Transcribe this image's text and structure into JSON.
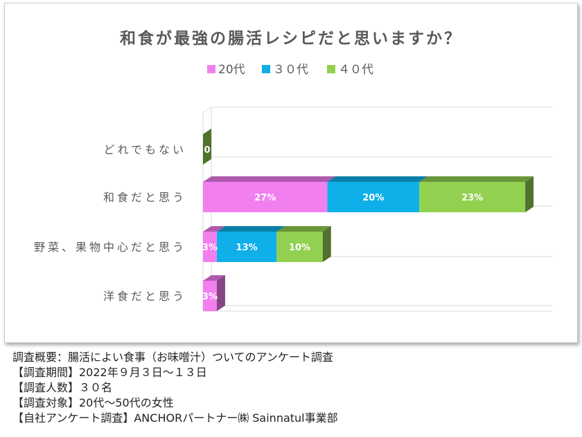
{
  "chart_data": {
    "type": "bar",
    "orientation": "horizontal",
    "stacked": true,
    "title": "和食が最強の腸活レシピだと思いますか？",
    "categories": [
      "どれでもない",
      "和食だと思う",
      "野菜、果物中心だと思う",
      "洋食だと思う"
    ],
    "series": [
      {
        "name": "20代",
        "color": "#f27ff0",
        "values": [
          0,
          27,
          3,
          3
        ],
        "labels": [
          "",
          "27%",
          "3%",
          "3%"
        ]
      },
      {
        "name": "３０代",
        "color": "#0fb0ea",
        "values": [
          0,
          20,
          13,
          0
        ],
        "labels": [
          "",
          "20%",
          "13%",
          ""
        ]
      },
      {
        "name": "４０代",
        "color": "#92d050",
        "values": [
          0,
          23,
          10,
          0
        ],
        "labels": [
          "0",
          "23%",
          "10%",
          ""
        ]
      }
    ],
    "xlim": [
      0,
      73
    ],
    "legend_position": "top",
    "grid": true,
    "style": "3d"
  },
  "notes": [
    "調査概要：腸活によい食事（お味噌汁）ついてのアンケート調査",
    "【調査期間】2022年９月３日～１３日",
    "【調査人数】３０名",
    "【調査対象】20代～50代の女性",
    "【自社アンケート調査】ANCHORパートナー㈱ Sainnatul事業部"
  ]
}
